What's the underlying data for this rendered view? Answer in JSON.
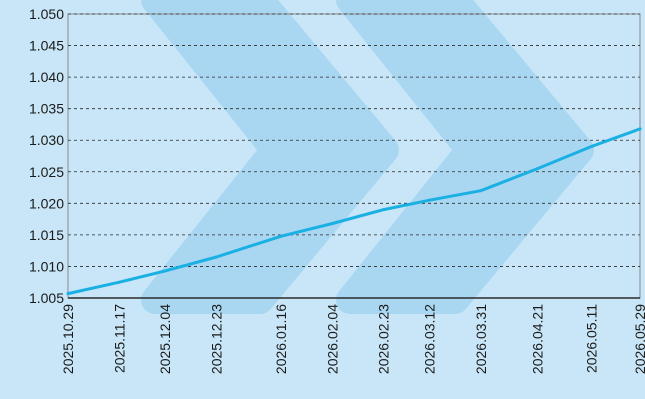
{
  "chart_data": {
    "type": "line",
    "title": "",
    "xlabel": "",
    "ylabel": "",
    "x_type": "date",
    "xlim": [
      "2025-10-29",
      "2026-05-29"
    ],
    "ylim": [
      1.005,
      1.05
    ],
    "y_ticks": [
      "1.005",
      "1.010",
      "1.015",
      "1.020",
      "1.025",
      "1.030",
      "1.035",
      "1.040",
      "1.045",
      "1.050"
    ],
    "x_ticks": [
      "2025.10.29",
      "2025.11.17",
      "2025.12.04",
      "2025.12.23",
      "2026.01.16",
      "2026.02.04",
      "2026.02.23",
      "2026.03.12",
      "2026.03.31",
      "2026.04.21",
      "2026.05.11",
      "2026.05.29"
    ],
    "grid": true,
    "legend": "none",
    "series": [
      {
        "color": "#1ab0e4",
        "x": [
          "2025-10-29",
          "2025-11-17",
          "2025-12-04",
          "2025-12-23",
          "2026-01-16",
          "2026-02-04",
          "2026-02-23",
          "2026-03-12",
          "2026-03-31",
          "2026-04-21",
          "2026-05-11",
          "2026-05-29"
        ],
        "values": [
          1.0057,
          1.0075,
          1.0093,
          1.0115,
          1.0148,
          1.0168,
          1.019,
          1.0205,
          1.022,
          1.0255,
          1.029,
          1.0318
        ]
      }
    ]
  },
  "colors": {
    "background": "#c8e6f7",
    "plot_background": "#c8e6f7",
    "chevron": "#a9d7f1",
    "grid": "#2a2a2a",
    "axis": "#8a8a8a",
    "line": "#1ab0e4"
  }
}
